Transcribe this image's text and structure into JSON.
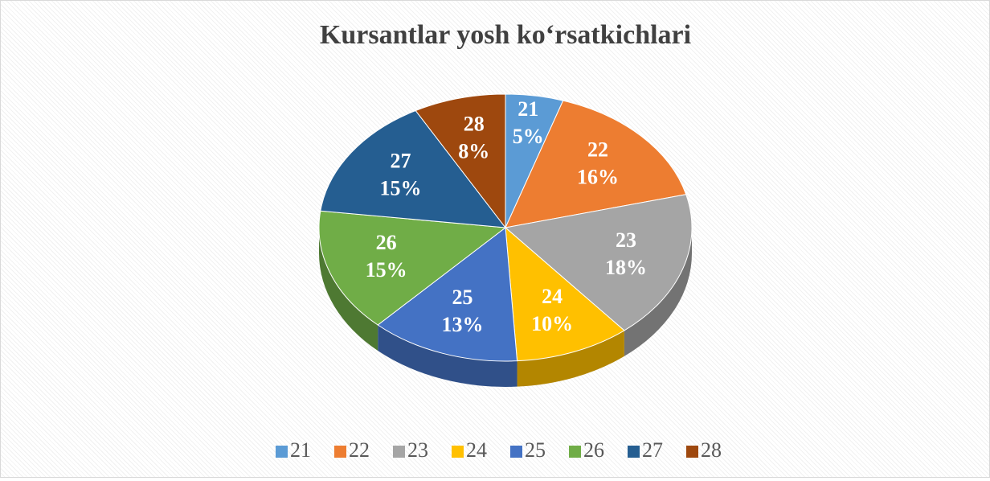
{
  "chart_data": {
    "type": "pie",
    "title": "Kursantlar yosh ko‘rsatkichlari",
    "categories": [
      "21",
      "22",
      "23",
      "24",
      "25",
      "26",
      "27",
      "28"
    ],
    "values": [
      5,
      16,
      18,
      10,
      13,
      15,
      15,
      8
    ],
    "value_labels": [
      "5%",
      "16%",
      "18%",
      "10%",
      "13%",
      "15%",
      "15%",
      "8%"
    ],
    "colors": [
      "#5b9bd5",
      "#ed7d31",
      "#a5a5a5",
      "#ffc000",
      "#4472c4",
      "#70ad47",
      "#255e91",
      "#9e480e"
    ],
    "legend": "bottom"
  }
}
